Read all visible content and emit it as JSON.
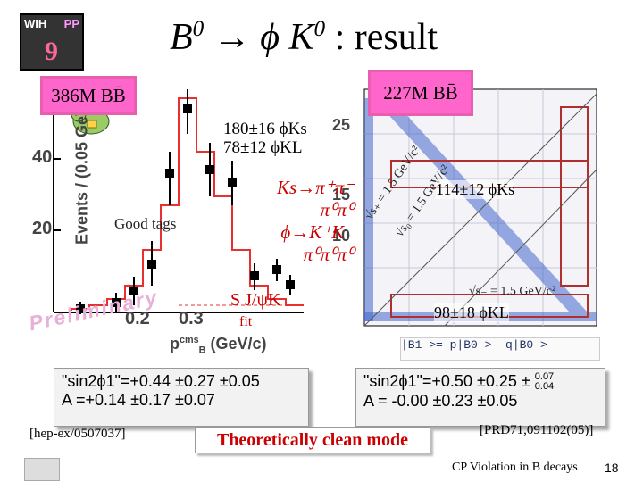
{
  "header": {
    "title_b": "B",
    "title_b_sup": "0",
    "title_arrow": " → ",
    "title_phi": "ϕ",
    "title_k": " K",
    "title_k_sup": "0",
    "title_rest": " : result",
    "logo_left": "WIH",
    "logo_right": "PP",
    "logo_num": "9"
  },
  "left_panel": {
    "sample_label": "386M BB̄",
    "y_axis_label": "Events / (0.05 GeV/c)",
    "y_ticks": [
      "20",
      "40"
    ],
    "x_ticks": [
      "0.2",
      "0.3"
    ],
    "x_axis_label": "p",
    "x_axis_label_sup": "cms",
    "x_axis_label_sub": "B",
    "x_axis_unit": "(GeV/c)",
    "good_tags": "Good tags",
    "yield_line1": "180±16 ϕKs",
    "yield_line2": "78±12 ϕKL",
    "preliminary": "Preliminary",
    "legend_fragment": "S J/ψK",
    "legend_fragment2": "fit"
  },
  "decay_modes": {
    "line1": "Ks→π⁺π⁻",
    "line2": "π⁰π⁰",
    "line3": "ϕ→K⁺K⁻",
    "line4": "π⁰π⁰π⁰"
  },
  "right_panel": {
    "sample_label": "227M BB̄",
    "y_tick": "25",
    "y_tick2": "15",
    "y_tick3": "10",
    "diag_label1": "√s₊ = 1.5 GeV/c²",
    "diag_label2": "√s₀ = 1.5 GeV/c²",
    "diag_label3": "√s₋ = 1.5 GeV/c²",
    "yield_ks": "114±12 ϕKs",
    "yield_kl": "98±18 ϕKL",
    "legend_text": "|B1 >= p|B0 > -q|B0 >"
  },
  "results": {
    "belle_line1": "\"sin2ϕ1\"=+0.44 ±0.27 ±0.05",
    "belle_line2": "A  =+0.14 ±0.17 ±0.07",
    "babar_line1": "\"sin2ϕ1\"=+0.50 ±0.25 ±",
    "babar_sys_up": "0.07",
    "babar_sys_down": "0.04",
    "babar_line2": "A  = -0.00 ±0.23 ±0.05"
  },
  "footer": {
    "ref_left": "[hep-ex/0507037]",
    "ref_right": "[PRD71,091102(05)]",
    "clean_mode": "Theoretically clean mode",
    "talk_title": "CP Violation in B decays",
    "page_number": "18"
  }
}
